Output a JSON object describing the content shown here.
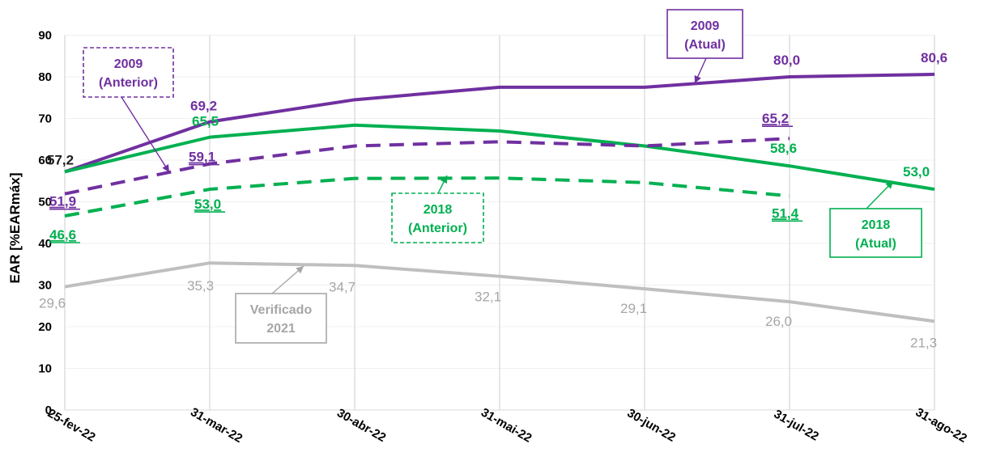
{
  "chart_data": {
    "type": "line",
    "ylabel": "EAR [%EARmáx]",
    "ylim": [
      0,
      90
    ],
    "yticks": [
      "0",
      "10",
      "20",
      "30",
      "40",
      "50",
      "60",
      "70",
      "80",
      "90"
    ],
    "categories": [
      "25-fev-22",
      "31-mar-22",
      "30-abr-22",
      "31-mai-22",
      "30-jun-22",
      "31-jul-22",
      "31-ago-22"
    ],
    "grid": true,
    "series": [
      {
        "name": "2009 (Atual)",
        "color": "#7030A0",
        "style": "solid",
        "values": [
          57.2,
          69.2,
          74.5,
          77.5,
          77.5,
          80.0,
          80.6
        ],
        "labels": [
          "57,2",
          "69,2",
          null,
          null,
          null,
          "80,0",
          "80,6"
        ]
      },
      {
        "name": "2018 (Atual)",
        "color": "#00B050",
        "style": "solid",
        "values": [
          57.2,
          65.5,
          68.4,
          67.0,
          63.4,
          58.6,
          53.0
        ],
        "labels": [
          null,
          "65,5",
          null,
          null,
          null,
          "58,6",
          "53,0"
        ]
      },
      {
        "name": "2009 (Anterior)",
        "color": "#7030A0",
        "style": "dashed",
        "values": [
          51.9,
          59.1,
          63.4,
          64.4,
          63.4,
          65.2,
          null
        ],
        "labels": [
          "51,9",
          "59,1",
          null,
          null,
          null,
          "65,2",
          null
        ]
      },
      {
        "name": "2018 (Anterior)",
        "color": "#00B050",
        "style": "dashed",
        "values": [
          46.6,
          53.0,
          55.6,
          55.7,
          54.6,
          51.4,
          null
        ],
        "labels": [
          "46,6",
          "53,0",
          null,
          null,
          null,
          "51,4",
          null
        ]
      },
      {
        "name": "Verificado 2021",
        "color": "#BFBFBF",
        "style": "solid",
        "values": [
          29.6,
          35.3,
          34.7,
          32.1,
          29.1,
          26.0,
          21.3
        ],
        "labels": [
          "29,6",
          "35,3",
          "34,7",
          "32,1",
          "29,1",
          "26,0",
          "21,3"
        ]
      }
    ],
    "callouts": [
      {
        "line1": "2009",
        "line2": "(Atual)",
        "color": "#7030A0",
        "border": "solid"
      },
      {
        "line1": "2009",
        "line2": "(Anterior)",
        "color": "#7030A0",
        "border": "dashed"
      },
      {
        "line1": "2018",
        "line2": "(Anterior)",
        "color": "#00B050",
        "border": "dashed"
      },
      {
        "line1": "2018",
        "line2": "(Atual)",
        "color": "#00B050",
        "border": "solid"
      },
      {
        "line1": "Verificado",
        "line2": "2021",
        "color": "#A6A6A6",
        "border": "solid"
      }
    ]
  }
}
